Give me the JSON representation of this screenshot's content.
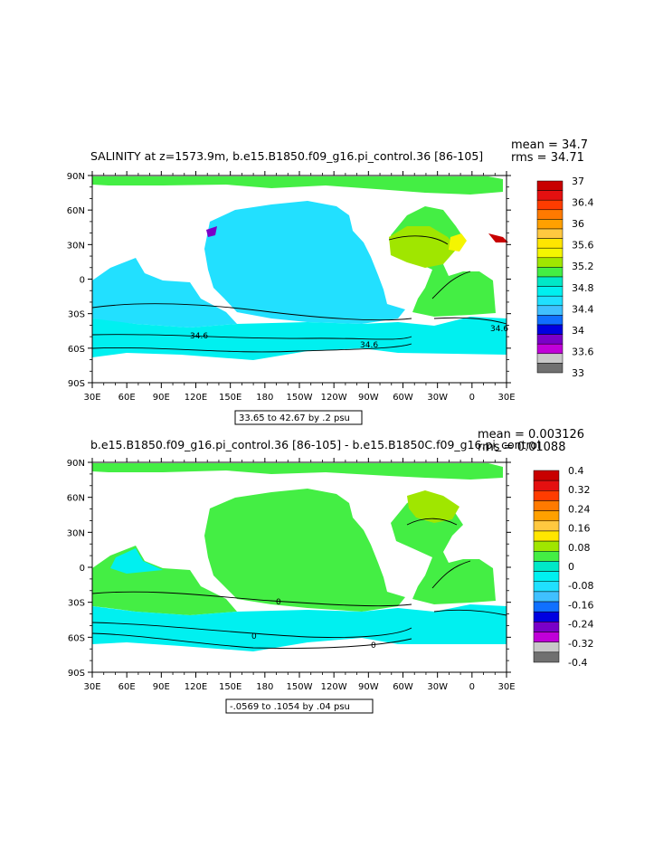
{
  "panel1": {
    "title": "SALINITY at z=1573.9m, b.e15.B1850.f09_g16.pi_control.36  [86-105]",
    "mean": "mean = 34.7",
    "rms": "rms = 34.71",
    "range_note": "33.65 to 42.67 by .2 psu",
    "contour_labels": [
      "34.6",
      "34.6",
      "34.6"
    ],
    "colorbar_labels": [
      "37",
      "36.4",
      "36",
      "35.6",
      "35.2",
      "34.8",
      "34.4",
      "34",
      "33.6",
      "33"
    ],
    "colorbar_colors": [
      "#c80000",
      "#e41010",
      "#ff3c00",
      "#ff7a00",
      "#ffa000",
      "#ffc840",
      "#ffe600",
      "#f5f500",
      "#a0e600",
      "#44ee44",
      "#00e8c8",
      "#00f0f0",
      "#20e0ff",
      "#40c0ff",
      "#1070ff",
      "#0000e0",
      "#7a00c8",
      "#c000d8",
      "#c8c8c8",
      "#707070"
    ]
  },
  "panel2": {
    "title": "b.e15.B1850.f09_g16.pi_control.36  [86-105]  -  b.e15.B1850C.f09_g16.pi_control",
    "mean": "mean = 0.003126",
    "rms": "rms = 0.01088",
    "range_note": "-.0569 to .1054 by .04 psu",
    "contour_labels": [
      "0",
      "0",
      "0"
    ],
    "colorbar_labels": [
      "0.4",
      "0.32",
      "0.24",
      "0.16",
      "0.08",
      "0",
      "-0.08",
      "-0.16",
      "-0.24",
      "-0.32",
      "-0.4"
    ],
    "colorbar_colors": [
      "#c80000",
      "#e41010",
      "#ff3c00",
      "#ff7a00",
      "#ffa000",
      "#ffc840",
      "#ffe600",
      "#a0e600",
      "#44ee44",
      "#00e8c8",
      "#00f0f0",
      "#20e0ff",
      "#40c0ff",
      "#1070ff",
      "#0000e0",
      "#7a00c8",
      "#c000d8",
      "#c8c8c8",
      "#707070"
    ]
  },
  "axes": {
    "lon_ticks": [
      "30E",
      "60E",
      "90E",
      "120E",
      "150E",
      "180",
      "150W",
      "120W",
      "90W",
      "60W",
      "30W",
      "0",
      "30E"
    ],
    "lat_ticks": [
      "90N",
      "60N",
      "30N",
      "0",
      "30S",
      "60S",
      "90S"
    ]
  },
  "colors": {
    "pacific": "#22e0ff",
    "southern": "#00f0f0",
    "atlantic": "#44ee44",
    "north_atlantic": "#a0e600",
    "mediterranean_high": "#f5f500",
    "diff_main": "#44ee44",
    "diff_neg": "#00f0f0",
    "land": "#ffffff"
  }
}
